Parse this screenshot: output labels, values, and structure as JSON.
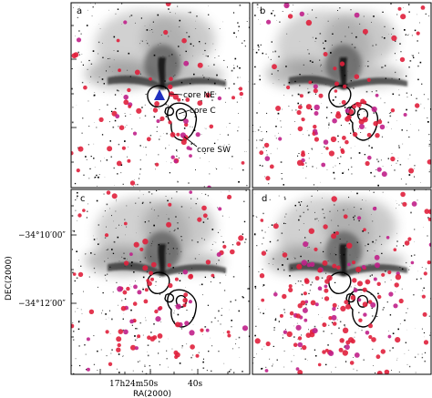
{
  "figure": {
    "panels": [
      {
        "id": "a",
        "label": "a"
      },
      {
        "id": "b",
        "label": "b"
      },
      {
        "id": "c",
        "label": "c"
      },
      {
        "id": "d",
        "label": "d"
      }
    ],
    "annotations": {
      "core_ne": "core NE",
      "core_c": "core C",
      "core_sw": "core SW"
    },
    "axes": {
      "xlabel": "RA(2000)",
      "ylabel": "DEC(2000)",
      "xticks": [
        "17h24m50s",
        "40s"
      ],
      "yticks": [
        "−34°10′00″",
        "−34°12′00″"
      ]
    },
    "colors": {
      "source_marker": "#e0203c",
      "source_marker_alt": "#c0208a",
      "core_ne_marker": "#2030c0",
      "contour": "#000000",
      "nebula": "#333333"
    }
  }
}
